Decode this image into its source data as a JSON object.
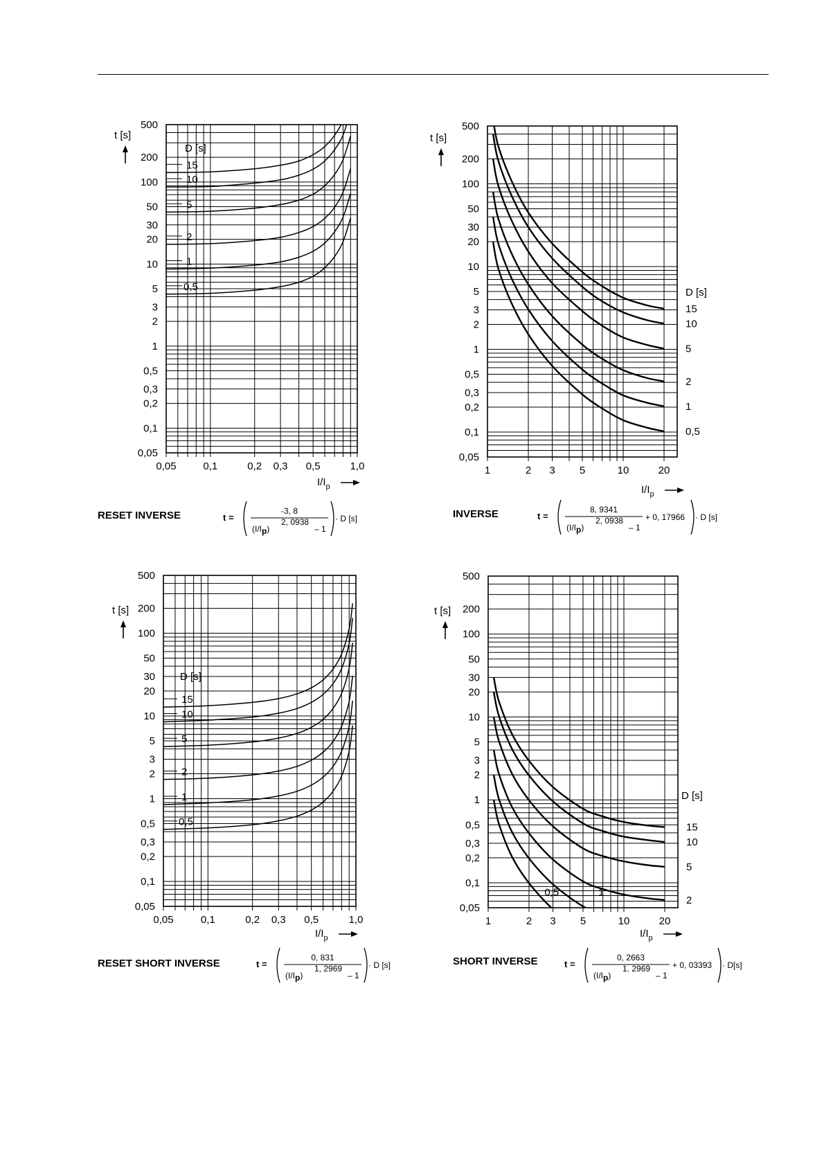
{
  "charts": [
    {
      "title": "RESET INVERSE",
      "formula": {
        "numerator": "-3, 8",
        "exponent": "2, 0938",
        "tail": "· D  [s]"
      },
      "y_axis_label": "t [s]",
      "x_axis_label": "I/I",
      "x_axis_label_sub": "p",
      "legend_title": "D [s]"
    },
    {
      "title": "INVERSE",
      "formula": {
        "numerator": "8, 9341",
        "exponent": "2, 0938",
        "extra": "+ 0, 17966",
        "tail": "· D [s]"
      },
      "y_axis_label": "t [s]",
      "x_axis_label": "I/I",
      "x_axis_label_sub": "p",
      "legend_title": "D [s]"
    },
    {
      "title": "RESET SHORT INVERSE",
      "formula": {
        "numerator": "0, 831",
        "exponent": "1, 2969",
        "tail": "· D   [s]"
      },
      "y_axis_label": "t [s]",
      "x_axis_label": "I/I",
      "x_axis_label_sub": "p",
      "legend_title": "D [s]"
    },
    {
      "title": "SHORT INVERSE",
      "formula": {
        "numerator": "0, 2663",
        "exponent": "1. 2969",
        "extra": "+ 0, 03393",
        "tail": "· D[s]"
      },
      "y_axis_label": "t [s]",
      "x_axis_label": "I/I",
      "x_axis_label_sub": "p",
      "legend_title": "D [s]"
    }
  ],
  "chart_data": [
    {
      "type": "line",
      "title": "RESET INVERSE",
      "xlabel": "I/Ip",
      "ylabel": "t [s]",
      "x_scale": "log",
      "y_scale": "log",
      "xlim": [
        0.05,
        1.0
      ],
      "ylim": [
        0.05,
        500
      ],
      "x_ticks": [
        "0,05",
        "0,1",
        "0,2",
        "0,3",
        "0,5",
        "1,0"
      ],
      "x_tick_values": [
        0.05,
        0.1,
        0.2,
        0.3,
        0.5,
        1.0
      ],
      "y_ticks": [
        "500",
        "200",
        "100",
        "50",
        "30",
        "20",
        "10",
        "5",
        "3",
        "2",
        "1",
        "0,5",
        "0,3",
        "0,2",
        "0,1",
        "0,05"
      ],
      "y_tick_values": [
        500,
        200,
        100,
        50,
        30,
        20,
        10,
        5,
        3,
        2,
        1,
        0.5,
        0.3,
        0.2,
        0.1,
        0.05
      ],
      "legend_title": "D [s]",
      "formula": "t = (-3,8 / ((I/Ip)^2,0938 - 1)) · D [s]",
      "grid": true,
      "series": [
        {
          "name": "15",
          "x": [
            0.05,
            0.1,
            0.2,
            0.3,
            0.4,
            0.5,
            0.6,
            0.7,
            0.8,
            0.9
          ],
          "y": [
            130,
            133,
            145,
            160,
            180,
            215,
            270,
            370,
            560,
            1090
          ]
        },
        {
          "name": "10",
          "x": [
            0.05,
            0.1,
            0.2,
            0.3,
            0.4,
            0.5,
            0.6,
            0.7,
            0.8,
            0.9
          ],
          "y": [
            87,
            88,
            97,
            106,
            121,
            143,
            180,
            247,
            373,
            728
          ]
        },
        {
          "name": "5",
          "x": [
            0.05,
            0.1,
            0.2,
            0.3,
            0.4,
            0.5,
            0.6,
            0.7,
            0.8,
            0.9
          ],
          "y": [
            43,
            44,
            48,
            53,
            60,
            71,
            90,
            123,
            187,
            364
          ]
        },
        {
          "name": "2",
          "x": [
            0.05,
            0.1,
            0.2,
            0.3,
            0.4,
            0.5,
            0.6,
            0.7,
            0.8,
            0.9
          ],
          "y": [
            17.4,
            17.7,
            19.3,
            21.2,
            24.2,
            28.6,
            36,
            49,
            75,
            146
          ]
        },
        {
          "name": "1",
          "x": [
            0.05,
            0.1,
            0.2,
            0.3,
            0.4,
            0.5,
            0.6,
            0.7,
            0.8,
            0.9
          ],
          "y": [
            8.7,
            8.9,
            9.7,
            10.6,
            12.1,
            14.3,
            18,
            24.7,
            37.3,
            72.8
          ]
        },
        {
          "name": "0,5",
          "x": [
            0.05,
            0.1,
            0.2,
            0.3,
            0.4,
            0.5,
            0.6,
            0.7,
            0.8,
            0.9
          ],
          "y": [
            4.3,
            4.4,
            4.8,
            5.3,
            6.0,
            7.1,
            9.0,
            12.3,
            18.7,
            36.4
          ]
        }
      ]
    },
    {
      "type": "line",
      "title": "INVERSE",
      "xlabel": "I/Ip",
      "ylabel": "t [s]",
      "x_scale": "log",
      "y_scale": "log",
      "xlim": [
        1,
        25
      ],
      "ylim": [
        0.05,
        500
      ],
      "x_ticks": [
        "1",
        "2",
        "3",
        "5",
        "10",
        "20"
      ],
      "x_tick_values": [
        1,
        2,
        3,
        5,
        10,
        20
      ],
      "y_ticks": [
        "500",
        "200",
        "100",
        "50",
        "30",
        "20",
        "10",
        "5",
        "3",
        "2",
        "1",
        "0,5",
        "0,3",
        "0,2",
        "0,1",
        "0,05"
      ],
      "y_tick_values": [
        500,
        200,
        100,
        50,
        30,
        20,
        10,
        5,
        3,
        2,
        1,
        0.5,
        0.3,
        0.2,
        0.1,
        0.05
      ],
      "legend_title": "D [s]",
      "formula": "t = (8,9341 / ((I/Ip)^2,0938 - 1) + 0,17966) · D [s]",
      "grid": true,
      "series": [
        {
          "name": "15",
          "x": [
            1.1,
            1.2,
            1.5,
            2,
            3,
            5,
            7,
            10,
            15,
            20
          ],
          "y": [
            600,
            288,
            110,
            45,
            19,
            8.6,
            5.8,
            4.2,
            3.4,
            3.1
          ]
        },
        {
          "name": "10",
          "x": [
            1.1,
            1.2,
            1.5,
            2,
            3,
            5,
            7,
            10,
            15,
            20
          ],
          "y": [
            400,
            192,
            73,
            30,
            12.6,
            5.7,
            3.8,
            2.8,
            2.25,
            2.05
          ]
        },
        {
          "name": "5",
          "x": [
            1.1,
            1.2,
            1.5,
            2,
            3,
            5,
            7,
            10,
            15,
            20
          ],
          "y": [
            200,
            96,
            36.5,
            15.2,
            6.3,
            2.9,
            1.93,
            1.39,
            1.13,
            1.02
          ]
        },
        {
          "name": "2",
          "x": [
            1.1,
            1.2,
            1.5,
            2,
            3,
            5,
            7,
            10,
            15,
            20
          ],
          "y": [
            80,
            38.4,
            14.6,
            6.1,
            2.52,
            1.14,
            0.77,
            0.56,
            0.45,
            0.41
          ]
        },
        {
          "name": "1",
          "x": [
            1.1,
            1.2,
            1.5,
            2,
            3,
            5,
            7,
            10,
            15,
            20
          ],
          "y": [
            40,
            19.2,
            7.3,
            3.04,
            1.26,
            0.57,
            0.386,
            0.278,
            0.226,
            0.205
          ]
        },
        {
          "name": "0,5",
          "x": [
            1.1,
            1.2,
            1.5,
            2,
            3,
            5,
            7,
            10,
            15,
            20
          ],
          "y": [
            20,
            9.6,
            3.65,
            1.52,
            0.63,
            0.285,
            0.193,
            0.139,
            0.113,
            0.102
          ]
        }
      ]
    },
    {
      "type": "line",
      "title": "RESET SHORT INVERSE",
      "xlabel": "I/Ip",
      "ylabel": "t [s]",
      "x_scale": "log",
      "y_scale": "log",
      "xlim": [
        0.05,
        1.0
      ],
      "ylim": [
        0.05,
        500
      ],
      "x_ticks": [
        "0,05",
        "0,1",
        "0,2",
        "0,3",
        "0,5",
        "1,0"
      ],
      "x_tick_values": [
        0.05,
        0.1,
        0.2,
        0.3,
        0.5,
        1.0
      ],
      "y_ticks": [
        "500",
        "200",
        "100",
        "50",
        "30",
        "20",
        "10",
        "5",
        "3",
        "2",
        "1",
        "0,5",
        "0,3",
        "0,2",
        "0,1",
        "0,05"
      ],
      "y_tick_values": [
        500,
        200,
        100,
        50,
        30,
        20,
        10,
        5,
        3,
        2,
        1,
        0.5,
        0.3,
        0.2,
        0.1,
        0.05
      ],
      "legend_title": "D [s]",
      "formula": "t = (0,831 / ((I/Ip)^1,2969 - 1)) · D [s]",
      "grid": true,
      "series": [
        {
          "name": "15",
          "x": [
            0.05,
            0.1,
            0.2,
            0.3,
            0.4,
            0.5,
            0.6,
            0.7,
            0.8,
            0.9,
            0.95
          ],
          "y": [
            12.8,
            13.3,
            14.6,
            16.2,
            18.5,
            21.9,
            27.3,
            36.8,
            56,
            113,
            230
          ]
        },
        {
          "name": "10",
          "x": [
            0.05,
            0.1,
            0.2,
            0.3,
            0.4,
            0.5,
            0.6,
            0.7,
            0.8,
            0.9,
            0.95
          ],
          "y": [
            8.5,
            8.9,
            9.7,
            10.8,
            12.3,
            14.6,
            18.2,
            24.5,
            37.3,
            75,
            153
          ]
        },
        {
          "name": "5",
          "x": [
            0.05,
            0.1,
            0.2,
            0.3,
            0.4,
            0.5,
            0.6,
            0.7,
            0.8,
            0.9,
            0.95
          ],
          "y": [
            4.27,
            4.43,
            4.85,
            5.4,
            6.16,
            7.3,
            9.1,
            12.3,
            18.7,
            37.6,
            76.6
          ]
        },
        {
          "name": "2",
          "x": [
            0.05,
            0.1,
            0.2,
            0.3,
            0.4,
            0.5,
            0.6,
            0.7,
            0.8,
            0.9,
            0.95
          ],
          "y": [
            1.71,
            1.77,
            1.94,
            2.16,
            2.46,
            2.92,
            3.64,
            4.9,
            7.5,
            15,
            30.6
          ]
        },
        {
          "name": "1",
          "x": [
            0.05,
            0.1,
            0.2,
            0.3,
            0.4,
            0.5,
            0.6,
            0.7,
            0.8,
            0.9,
            0.95
          ],
          "y": [
            0.85,
            0.89,
            0.97,
            1.08,
            1.23,
            1.46,
            1.82,
            2.45,
            3.73,
            7.5,
            15.3
          ]
        },
        {
          "name": "0,5",
          "x": [
            0.05,
            0.1,
            0.2,
            0.3,
            0.4,
            0.5,
            0.6,
            0.7,
            0.8,
            0.9,
            0.95
          ],
          "y": [
            0.427,
            0.443,
            0.485,
            0.54,
            0.616,
            0.73,
            0.91,
            1.23,
            1.87,
            3.76,
            7.66
          ]
        }
      ]
    },
    {
      "type": "line",
      "title": "SHORT INVERSE",
      "xlabel": "I/Ip",
      "ylabel": "t [s]",
      "x_scale": "log",
      "y_scale": "log",
      "xlim": [
        1,
        25
      ],
      "ylim": [
        0.05,
        500
      ],
      "x_ticks": [
        "1",
        "2",
        "3",
        "5",
        "10",
        "20"
      ],
      "x_tick_values": [
        1,
        2,
        3,
        5,
        10,
        20
      ],
      "y_ticks": [
        "500",
        "200",
        "100",
        "50",
        "30",
        "20",
        "10",
        "5",
        "3",
        "2",
        "1",
        "0,5",
        "0,3",
        "0,2",
        "0,1",
        "0,05"
      ],
      "y_tick_values": [
        500,
        200,
        100,
        50,
        30,
        20,
        10,
        5,
        3,
        2,
        1,
        0.5,
        0.3,
        0.2,
        0.1,
        0.05
      ],
      "legend_title": "D [s]",
      "formula": "t = (0,2663 / ((I/Ip)^1,2969 - 1) + 0,03393) · D [s]",
      "grid": true,
      "series": [
        {
          "name": "15",
          "x": [
            1.1,
            1.2,
            1.5,
            2,
            3,
            5,
            7,
            10,
            15,
            20
          ],
          "y": [
            30,
            15.5,
            6.2,
            2.96,
            1.43,
            0.78,
            0.63,
            0.54,
            0.49,
            0.47
          ]
        },
        {
          "name": "10",
          "x": [
            1.1,
            1.2,
            1.5,
            2,
            3,
            5,
            7,
            10,
            15,
            20
          ],
          "y": [
            20,
            10.3,
            4.1,
            1.97,
            0.96,
            0.52,
            0.42,
            0.36,
            0.327,
            0.31
          ]
        },
        {
          "name": "5",
          "x": [
            1.1,
            1.2,
            1.5,
            2,
            3,
            5,
            7,
            10,
            15,
            20
          ],
          "y": [
            10,
            5.15,
            2.06,
            0.99,
            0.48,
            0.26,
            0.21,
            0.181,
            0.163,
            0.156
          ]
        },
        {
          "name": "2",
          "x": [
            1.1,
            1.2,
            1.5,
            2,
            3,
            5,
            7,
            10,
            15,
            20
          ],
          "y": [
            4.0,
            2.06,
            0.82,
            0.395,
            0.191,
            0.104,
            0.084,
            0.072,
            0.065,
            0.062
          ]
        },
        {
          "name": "1",
          "x": [
            1.1,
            1.2,
            1.5,
            2,
            3,
            5,
            7,
            9
          ],
          "y": [
            2.0,
            1.03,
            0.41,
            0.197,
            0.096,
            0.052,
            0.042,
            0.037
          ]
        },
        {
          "name": "0,5",
          "x": [
            1.1,
            1.2,
            1.5,
            2,
            3,
            4
          ],
          "y": [
            1.0,
            0.515,
            0.206,
            0.099,
            0.048,
            0.035
          ]
        }
      ]
    }
  ]
}
